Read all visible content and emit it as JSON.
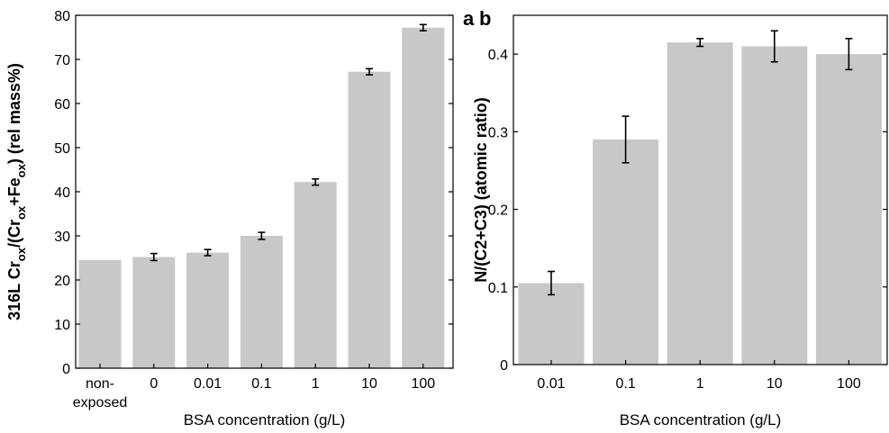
{
  "chart_data": [
    {
      "panel": "a",
      "type": "bar",
      "categories": [
        [
          "non-",
          "exposed"
        ],
        [
          "0"
        ],
        [
          "0.01"
        ],
        [
          "0.1"
        ],
        [
          "1"
        ],
        [
          "10"
        ],
        [
          "100"
        ]
      ],
      "values": [
        24.5,
        25.2,
        26.2,
        30.0,
        42.2,
        67.2,
        77.2
      ],
      "errors": [
        0,
        0.8,
        0.7,
        0.8,
        0.7,
        0.7,
        0.7
      ],
      "ylim": [
        0,
        80
      ],
      "yticks": [
        "0",
        "10",
        "20",
        "30",
        "40",
        "50",
        "60",
        "70",
        "80"
      ],
      "xlabel": "BSA concentration (g/L)",
      "ylabel_parts": [
        "316L Cr",
        "ox",
        "/(Cr",
        "ox",
        "+Fe",
        "ox",
        ") (rel mass%)"
      ]
    },
    {
      "panel": "b",
      "type": "bar",
      "categories": [
        [
          "0.01"
        ],
        [
          "0.1"
        ],
        [
          "1"
        ],
        [
          "10"
        ],
        [
          "100"
        ]
      ],
      "values": [
        0.105,
        0.29,
        0.415,
        0.41,
        0.4
      ],
      "errors": [
        0.015,
        0.03,
        0.005,
        0.02,
        0.02
      ],
      "ylim": [
        0,
        0.45
      ],
      "yticks": [
        "0",
        "0.1",
        "0.2",
        "0.3",
        "0.4"
      ],
      "xlabel": "BSA concentration (g/L)",
      "ylabel": "N/(C2+C3) (atomic ratio)"
    }
  ]
}
